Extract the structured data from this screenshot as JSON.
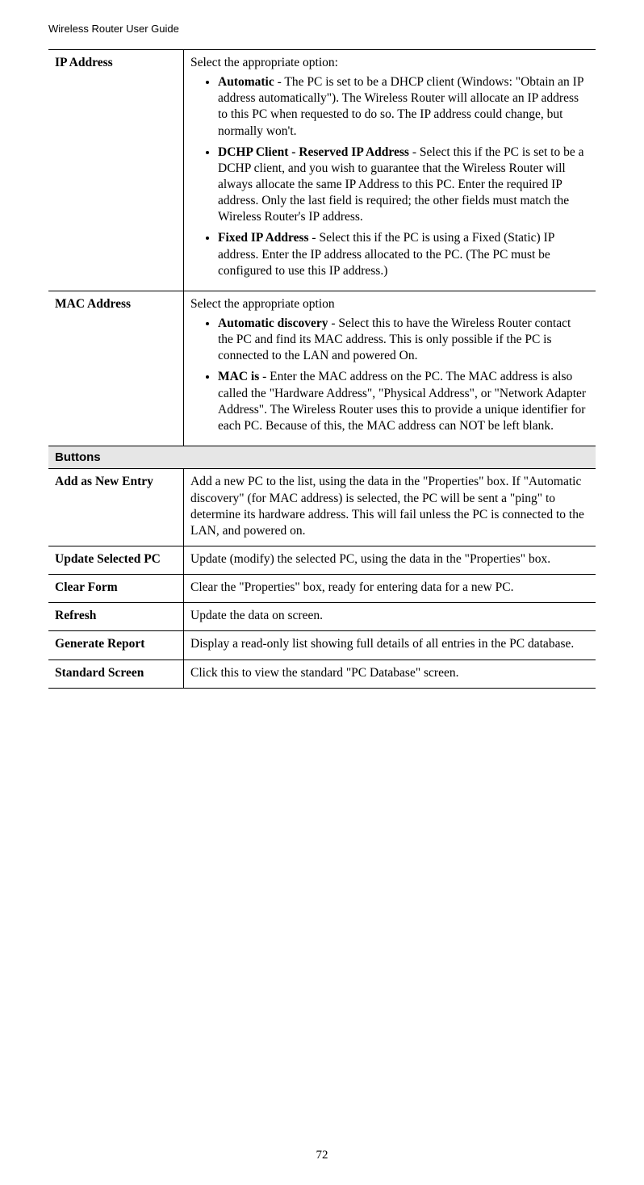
{
  "header": "Wireless Router User Guide",
  "pageNumber": "72",
  "rows": {
    "ipAddress": {
      "label": "IP Address",
      "intro": "Select the appropriate option:",
      "items": [
        {
          "bold": "Automatic",
          "text": " - The PC is set to be a DHCP client (Windows: \"Obtain an IP address automatically\"). The Wireless Router will allocate an IP address to this PC when requested to do so. The IP address could change, but normally won't."
        },
        {
          "bold": "DCHP Client - Reserved IP Address",
          "text": " - Select this if the PC is set to be a DCHP client, and you wish to guarantee that the Wireless Router will always allocate the same IP Address to this PC. Enter the required IP address. Only the last field is required; the other fields must match the Wireless Router's IP address."
        },
        {
          "bold": "Fixed IP Address",
          "text": " - Select this if the PC is using a Fixed (Static) IP address. Enter the IP address allocated to the PC. (The PC must be configured to use this IP address.)"
        }
      ]
    },
    "macAddress": {
      "label": "MAC Address",
      "intro": "Select the appropriate option",
      "items": [
        {
          "bold": "Automatic discovery",
          "text": " - Select this to have the Wireless Router contact the PC and find its MAC address. This is only possible if the PC is connected to the LAN and powered On."
        },
        {
          "bold": "MAC is",
          "text": " - Enter the MAC address on the PC. The MAC address is also called the \"Hardware Address\", \"Physical Address\", or \"Network Adapter Address\". The Wireless Router uses this to provide a unique identifier for each PC. Because of this, the MAC address can NOT be left blank."
        }
      ]
    },
    "sectionButtons": "Buttons",
    "addAsNew": {
      "label": "Add as New Entry",
      "text": "Add a new PC to the list, using the data in the \"Properties\" box. If \"Automatic discovery\" (for MAC address) is selected, the PC will be sent a \"ping\" to determine its hardware address. This will fail unless the PC is connected to the LAN, and powered on."
    },
    "updateSelected": {
      "label": "Update Selected PC",
      "text": "Update (modify) the selected PC, using the data in the \"Properties\" box."
    },
    "clearForm": {
      "label": "Clear Form",
      "text": "Clear the \"Properties\" box, ready for entering data for a new PC."
    },
    "refresh": {
      "label": "Refresh",
      "text": "Update the data on screen."
    },
    "generateReport": {
      "label": "Generate Report",
      "text": "Display a read-only list showing full details of all entries in the PC database."
    },
    "standardScreen": {
      "label": "Standard Screen",
      "text": "Click this to view the standard \"PC Database\" screen."
    }
  }
}
